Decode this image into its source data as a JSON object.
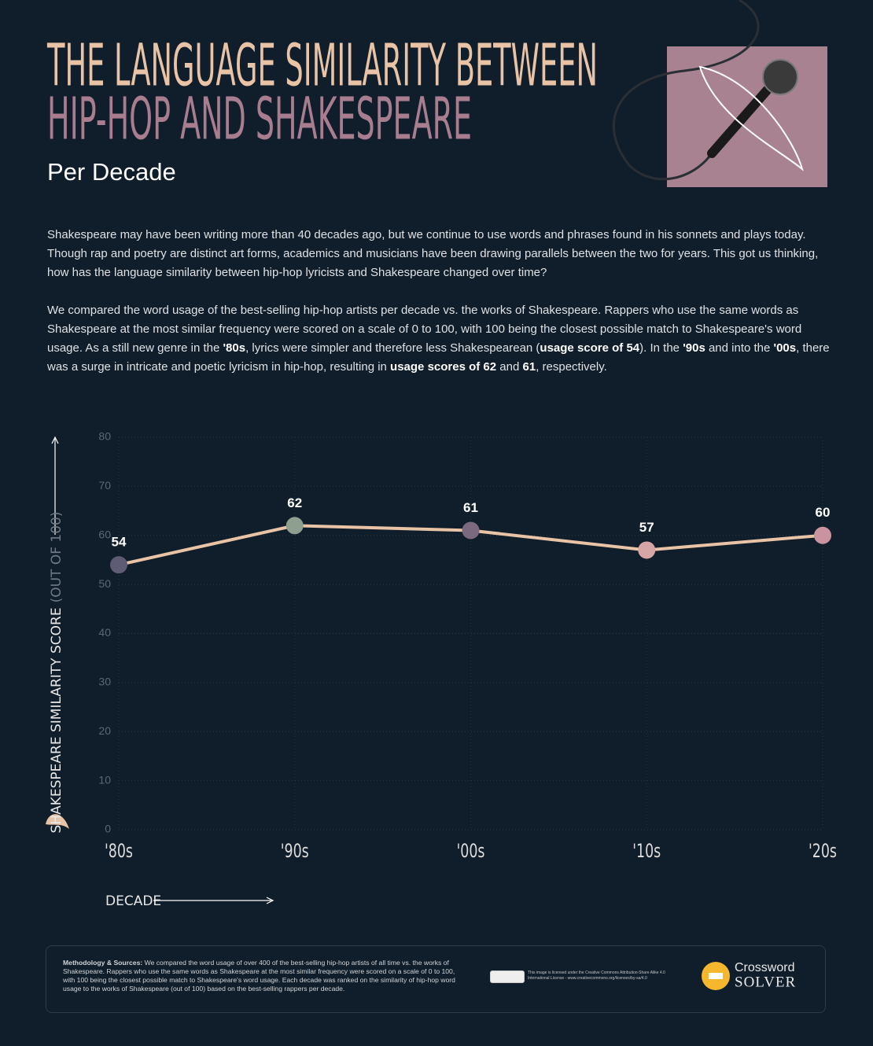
{
  "header": {
    "title_line1": "THE LANGUAGE SIMILARITY BETWEEN",
    "title_line2": "HIP-HOP AND SHAKESPEARE",
    "subtitle": "Per Decade"
  },
  "intro": {
    "paragraph1": "Shakespeare may have been writing more than 40 decades ago, but we continue to use words and phrases found in his sonnets and plays today. Though rap and poetry are distinct art forms, academics and musicians have been drawing parallels between the two for years. This got us thinking, how has the language similarity between hip-hop lyricists and Shakespeare changed over time?",
    "paragraph2": [
      {
        "text": "We compared the word usage of the best-selling hip-hop artists per decade vs. the works of Shakespeare. Rappers who use the same words as Shakespeare at the most similar frequency were scored on a scale of 0 to 100, with 100 being the closest possible match to Shakespeare's word usage. As a still new genre in the ",
        "bold": false
      },
      {
        "text": "'80s",
        "bold": true
      },
      {
        "text": ", lyrics were simpler and therefore less Shakespearean (",
        "bold": false
      },
      {
        "text": "usage score of 54",
        "bold": true
      },
      {
        "text": "). In the ",
        "bold": false
      },
      {
        "text": "'90s",
        "bold": true
      },
      {
        "text": " and into the ",
        "bold": false
      },
      {
        "text": "'00s",
        "bold": true
      },
      {
        "text": ", there was a surge in intricate and poetic lyricism in hip-hop, resulting in ",
        "bold": false
      },
      {
        "text": "usage scores of 62",
        "bold": true
      },
      {
        "text": " and ",
        "bold": false
      },
      {
        "text": "61",
        "bold": true
      },
      {
        "text": ", respectively.",
        "bold": false
      }
    ]
  },
  "chart_data": {
    "type": "line",
    "y_label": "SHAKESPEARE SIMILARITY SCORE",
    "y_label_note": "(OUT OF 100)",
    "x_label": "DECADE",
    "categories": [
      "'80s",
      "'90s",
      "'00s",
      "'10s",
      "'20s"
    ],
    "series": [
      {
        "name": "Similarity score",
        "color": "#e8c3a6",
        "point_colors": [
          "#5d5c74",
          "#8f9f8f",
          "#7b6a7f",
          "#d6a5a5",
          "#c9949f"
        ],
        "values": [
          54,
          62,
          61,
          57,
          60
        ]
      }
    ],
    "ylim": [
      0,
      80
    ],
    "yticks": [
      0,
      10,
      20,
      30,
      40,
      50,
      60,
      70,
      80
    ],
    "grid": true
  },
  "footer": {
    "methodology_title": "Methodology & Sources:",
    "methodology": " We compared the word usage of over 400 of the best-selling hip-hop artists of all time vs. the works of Shakespeare. Rappers who use the same words as Shakespeare at the most similar frequency were scored on a scale of 0 to 100, with 100 being the closest possible match to Shakespeare's word usage. Each decade was ranked on the similarity of hip-hop word usage to the works of Shakespeare (out of 100) based on the best-selling rappers per decade.",
    "license": "This image is licensed under the Creative Commons Attribution-Share Alike 4.0 International License - www.creativecommons.org/licenses/by-sa/4.0",
    "brand_top": "Crossword",
    "brand_bottom": "SOLVER"
  }
}
